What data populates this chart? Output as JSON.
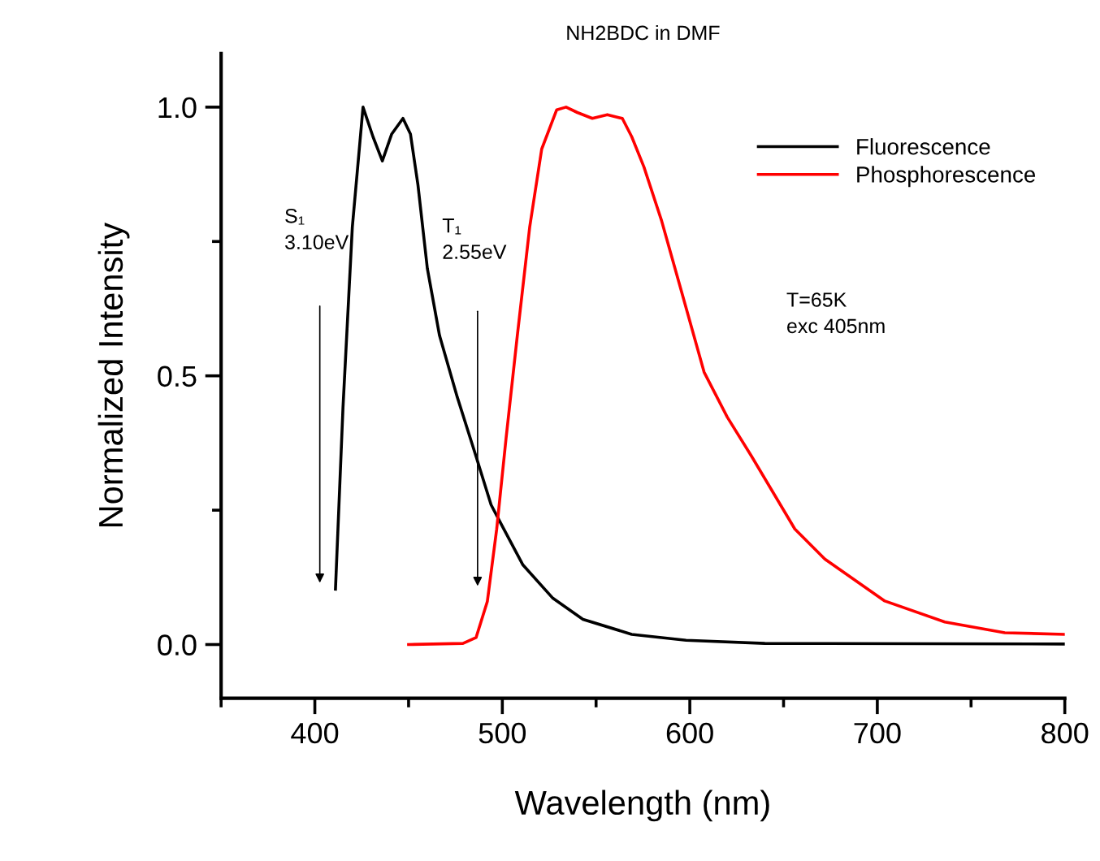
{
  "chart_data": {
    "type": "line",
    "title": "NH2BDC in DMF",
    "xlabel": "Wavelength (nm)",
    "ylabel": "Normalized Intensity",
    "xlim": [
      350,
      800
    ],
    "xticks": [
      400,
      500,
      600,
      700,
      800
    ],
    "ylim": [
      -0.1,
      1.1
    ],
    "yticks": [
      {
        "value": 0,
        "label": "0.0"
      },
      {
        "value": 0.5,
        "label": "0.5"
      },
      {
        "value": 1,
        "label": "1.0"
      }
    ],
    "grid": false,
    "legend": "top right",
    "line_style": "solid",
    "marker": "none",
    "series": [
      {
        "name": "Fluorescence",
        "color": "#000000",
        "x": [
          411,
          415,
          420,
          425.7,
          431,
          436,
          441,
          447,
          451,
          455,
          460,
          466.5,
          476,
          486,
          494,
          500,
          511,
          527,
          543,
          569,
          598,
          640,
          800
        ],
        "values": [
          0.103,
          0.44,
          0.777,
          1.0,
          0.945,
          0.9,
          0.95,
          0.979,
          0.95,
          0.855,
          0.7,
          0.575,
          0.46,
          0.35,
          0.26,
          0.22,
          0.148,
          0.086,
          0.047,
          0.019,
          0.008,
          0.002,
          0.001
        ]
      },
      {
        "name": "Phosphorescence",
        "color": "#ff0000",
        "x": [
          450,
          479,
          486,
          492,
          497,
          502,
          508,
          514.6,
          521,
          529,
          534,
          540,
          548,
          556,
          564,
          569,
          575.5,
          585,
          595,
          607.6,
          620,
          633,
          656,
          672,
          704,
          736,
          768,
          800
        ],
        "values": [
          0.0,
          0.002,
          0.013,
          0.08,
          0.215,
          0.384,
          0.575,
          0.777,
          0.922,
          0.995,
          1.0,
          0.99,
          0.979,
          0.986,
          0.979,
          0.945,
          0.889,
          0.788,
          0.664,
          0.507,
          0.423,
          0.35,
          0.215,
          0.159,
          0.081,
          0.042,
          0.022,
          0.019
        ]
      }
    ],
    "annotations": [
      "S₁\n3.10eV",
      "T₁\n2.55eV",
      "T=65K\nexc 405nm"
    ]
  }
}
